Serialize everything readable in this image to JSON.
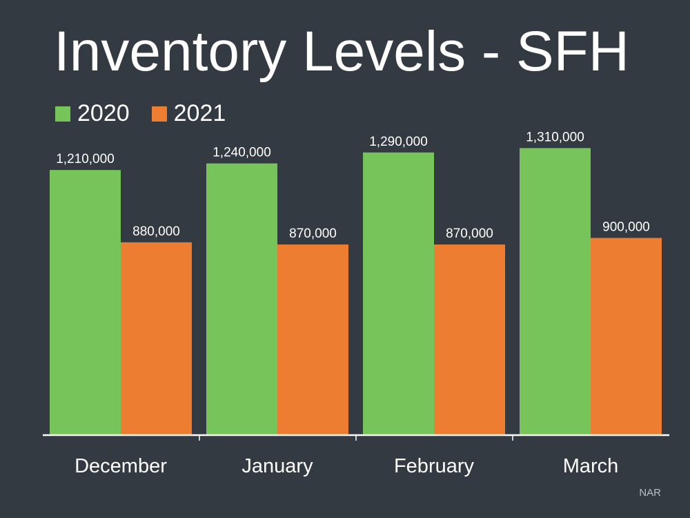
{
  "chart_data": {
    "type": "bar",
    "title": "Inventory Levels - SFH",
    "categories": [
      "December",
      "January",
      "February",
      "March"
    ],
    "series": [
      {
        "name": "2020",
        "values": [
          1210000,
          1240000,
          1290000,
          1310000
        ],
        "labels": [
          "1,210,000",
          "1,240,000",
          "1,290,000",
          "1,310,000"
        ],
        "color": "#76c45a"
      },
      {
        "name": "2021",
        "values": [
          880000,
          870000,
          870000,
          900000
        ],
        "labels": [
          "880,000",
          "870,000",
          "870,000",
          "900,000"
        ],
        "color": "#ed7d31"
      }
    ],
    "ylim": [
      0,
      1450000
    ],
    "grid": false,
    "legend_position": "top-left"
  },
  "source": "NAR"
}
